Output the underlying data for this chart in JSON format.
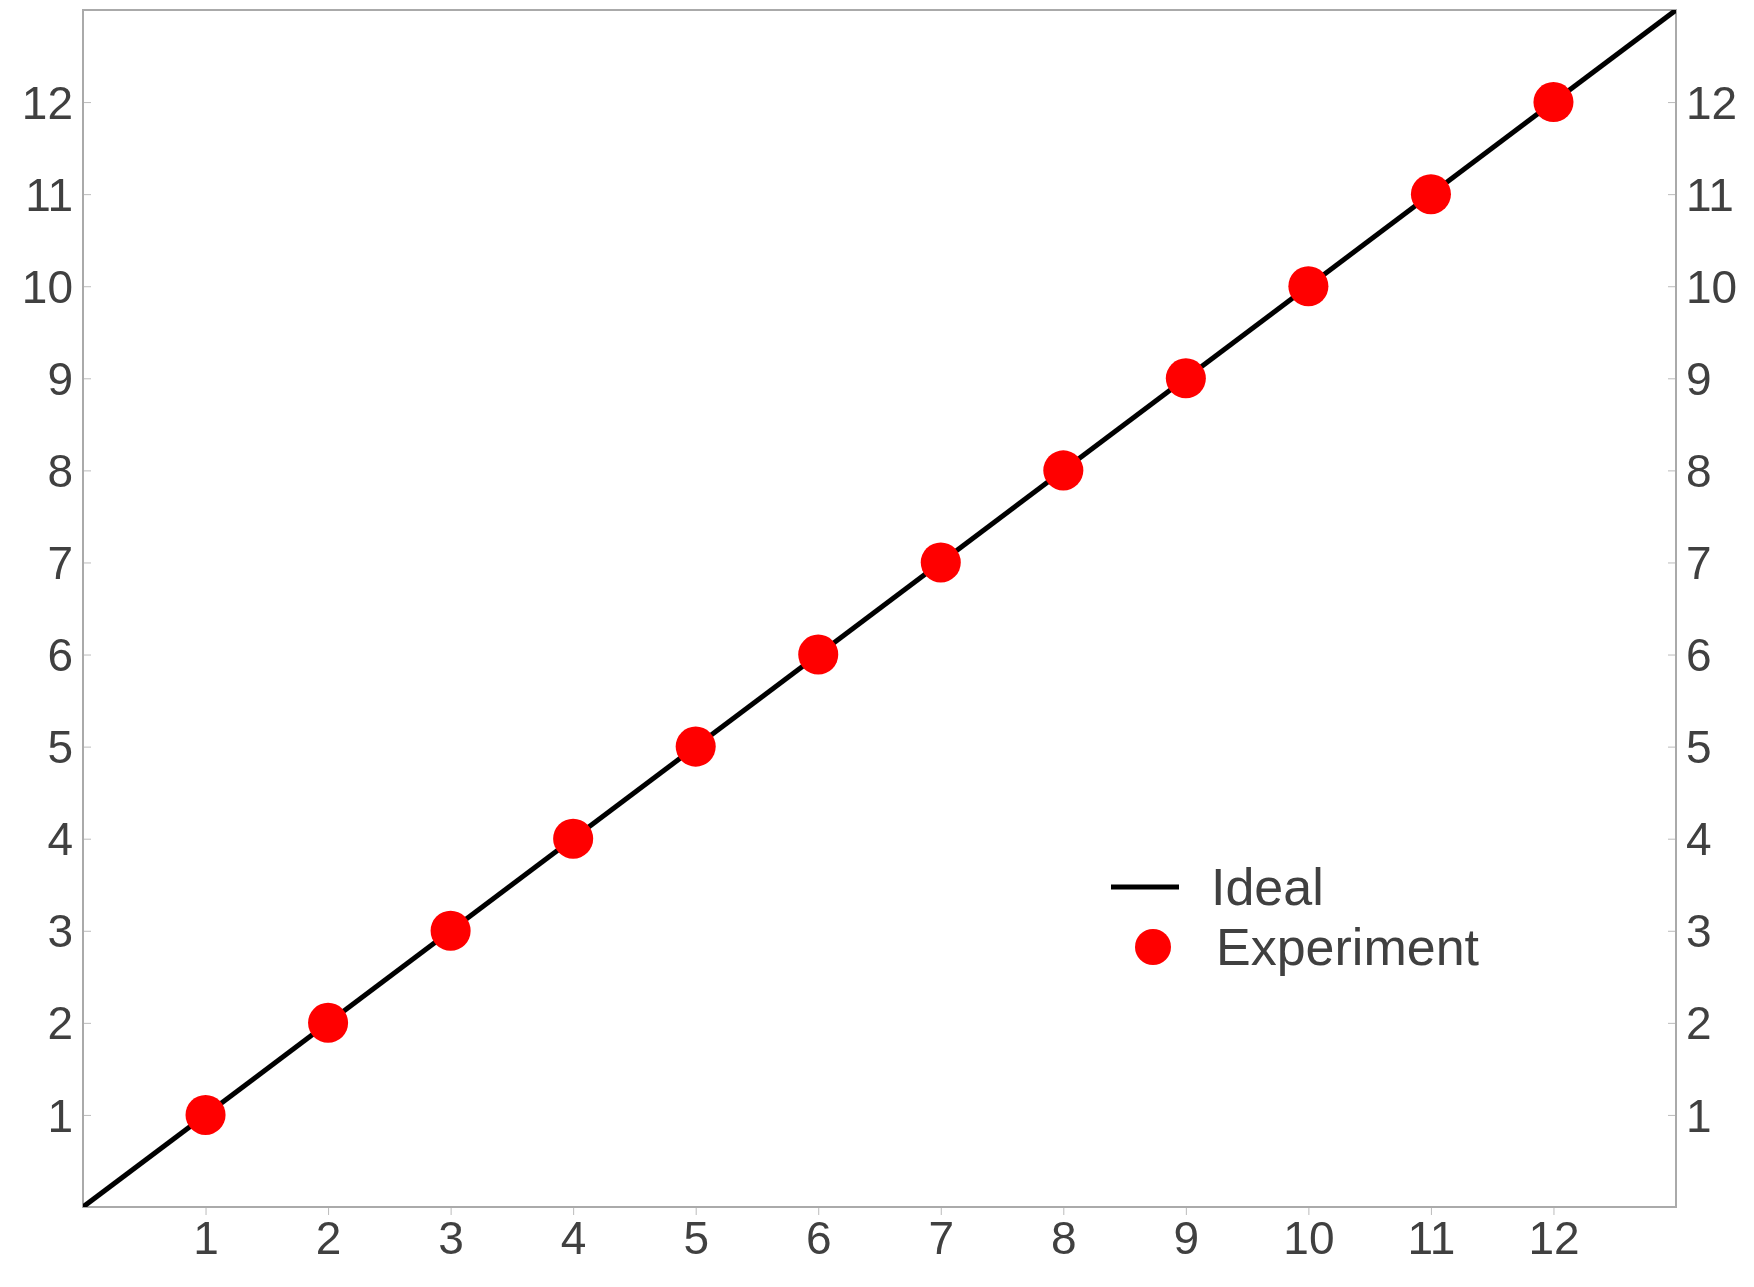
{
  "chart_data": {
    "type": "scatter",
    "xlim": [
      0,
      13
    ],
    "ylim": [
      0,
      13
    ],
    "y2lim": [
      0,
      13
    ],
    "xticks": [
      1,
      2,
      3,
      4,
      5,
      6,
      7,
      8,
      9,
      10,
      11,
      12
    ],
    "yticks": [
      1,
      2,
      3,
      4,
      5,
      6,
      7,
      8,
      9,
      10,
      11,
      12
    ],
    "y2ticks": [
      1,
      2,
      3,
      4,
      5,
      6,
      7,
      8,
      9,
      10,
      11,
      12
    ],
    "legend": "bottom right",
    "grid": false,
    "series": [
      {
        "name": "Ideal",
        "type": "line",
        "color": "#000000",
        "x": [
          0,
          13
        ],
        "values": [
          0,
          13
        ],
        "line_style": "solid",
        "marker": "none"
      },
      {
        "name": "Experiment",
        "color": "#ff0000",
        "x": [
          1,
          2,
          3,
          4,
          5,
          6,
          7,
          8,
          9,
          10,
          11,
          12
        ],
        "values": [
          1,
          2,
          3,
          4,
          5,
          6,
          7,
          8,
          9,
          10,
          11,
          12
        ],
        "marker": "circle"
      }
    ]
  }
}
